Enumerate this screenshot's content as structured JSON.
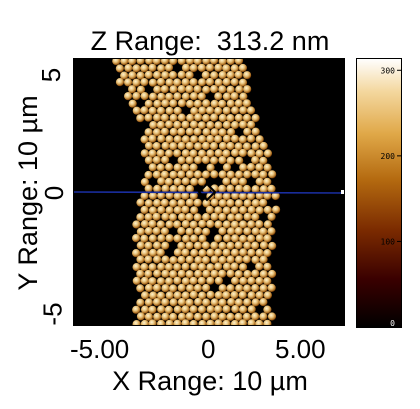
{
  "title": "Z Range:  313.2 nm",
  "x_axis": {
    "label": "X Range: 10 µm",
    "ticks": [
      "-5.00",
      "0",
      "5.00"
    ]
  },
  "y_axis": {
    "label": "Y Range: 10 µm",
    "ticks": [
      "5",
      "0",
      "-5"
    ]
  },
  "colorbar": {
    "ticks": [
      "300",
      "200",
      "100",
      "0"
    ],
    "tick_values_nm": [
      300,
      200,
      100,
      0
    ],
    "range_nm": [
      0,
      313.2
    ],
    "colors": [
      "#000000",
      "#3a0000",
      "#7a2a00",
      "#b46a10",
      "#e0a848",
      "#f4d8a0",
      "#ffffff"
    ]
  },
  "image": {
    "subject": "colloidal-particle-stripe-height-map",
    "particle_color": "#e8c27a",
    "background_color": "#000000",
    "profile_line_color": "#1a2ea0"
  }
}
